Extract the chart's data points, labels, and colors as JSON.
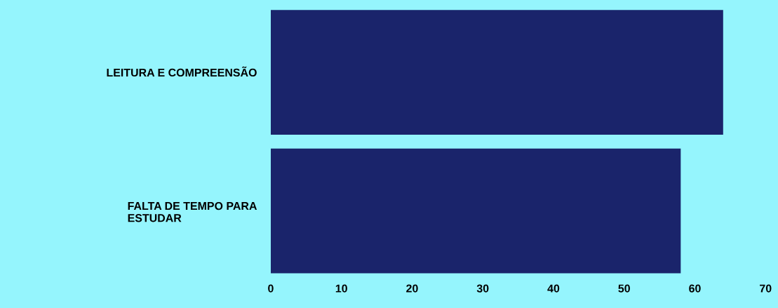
{
  "chart_data": {
    "type": "bar",
    "orientation": "horizontal",
    "categories": [
      "LEITURA E COMPREENSÃO",
      "FALTA DE TEMPO PARA\nESTUDAR"
    ],
    "values": [
      64,
      58
    ],
    "color": "#1a246b",
    "xlim": [
      0,
      70
    ],
    "xticks": [
      0,
      10,
      20,
      30,
      40,
      50,
      60,
      70
    ],
    "grid": false
  }
}
